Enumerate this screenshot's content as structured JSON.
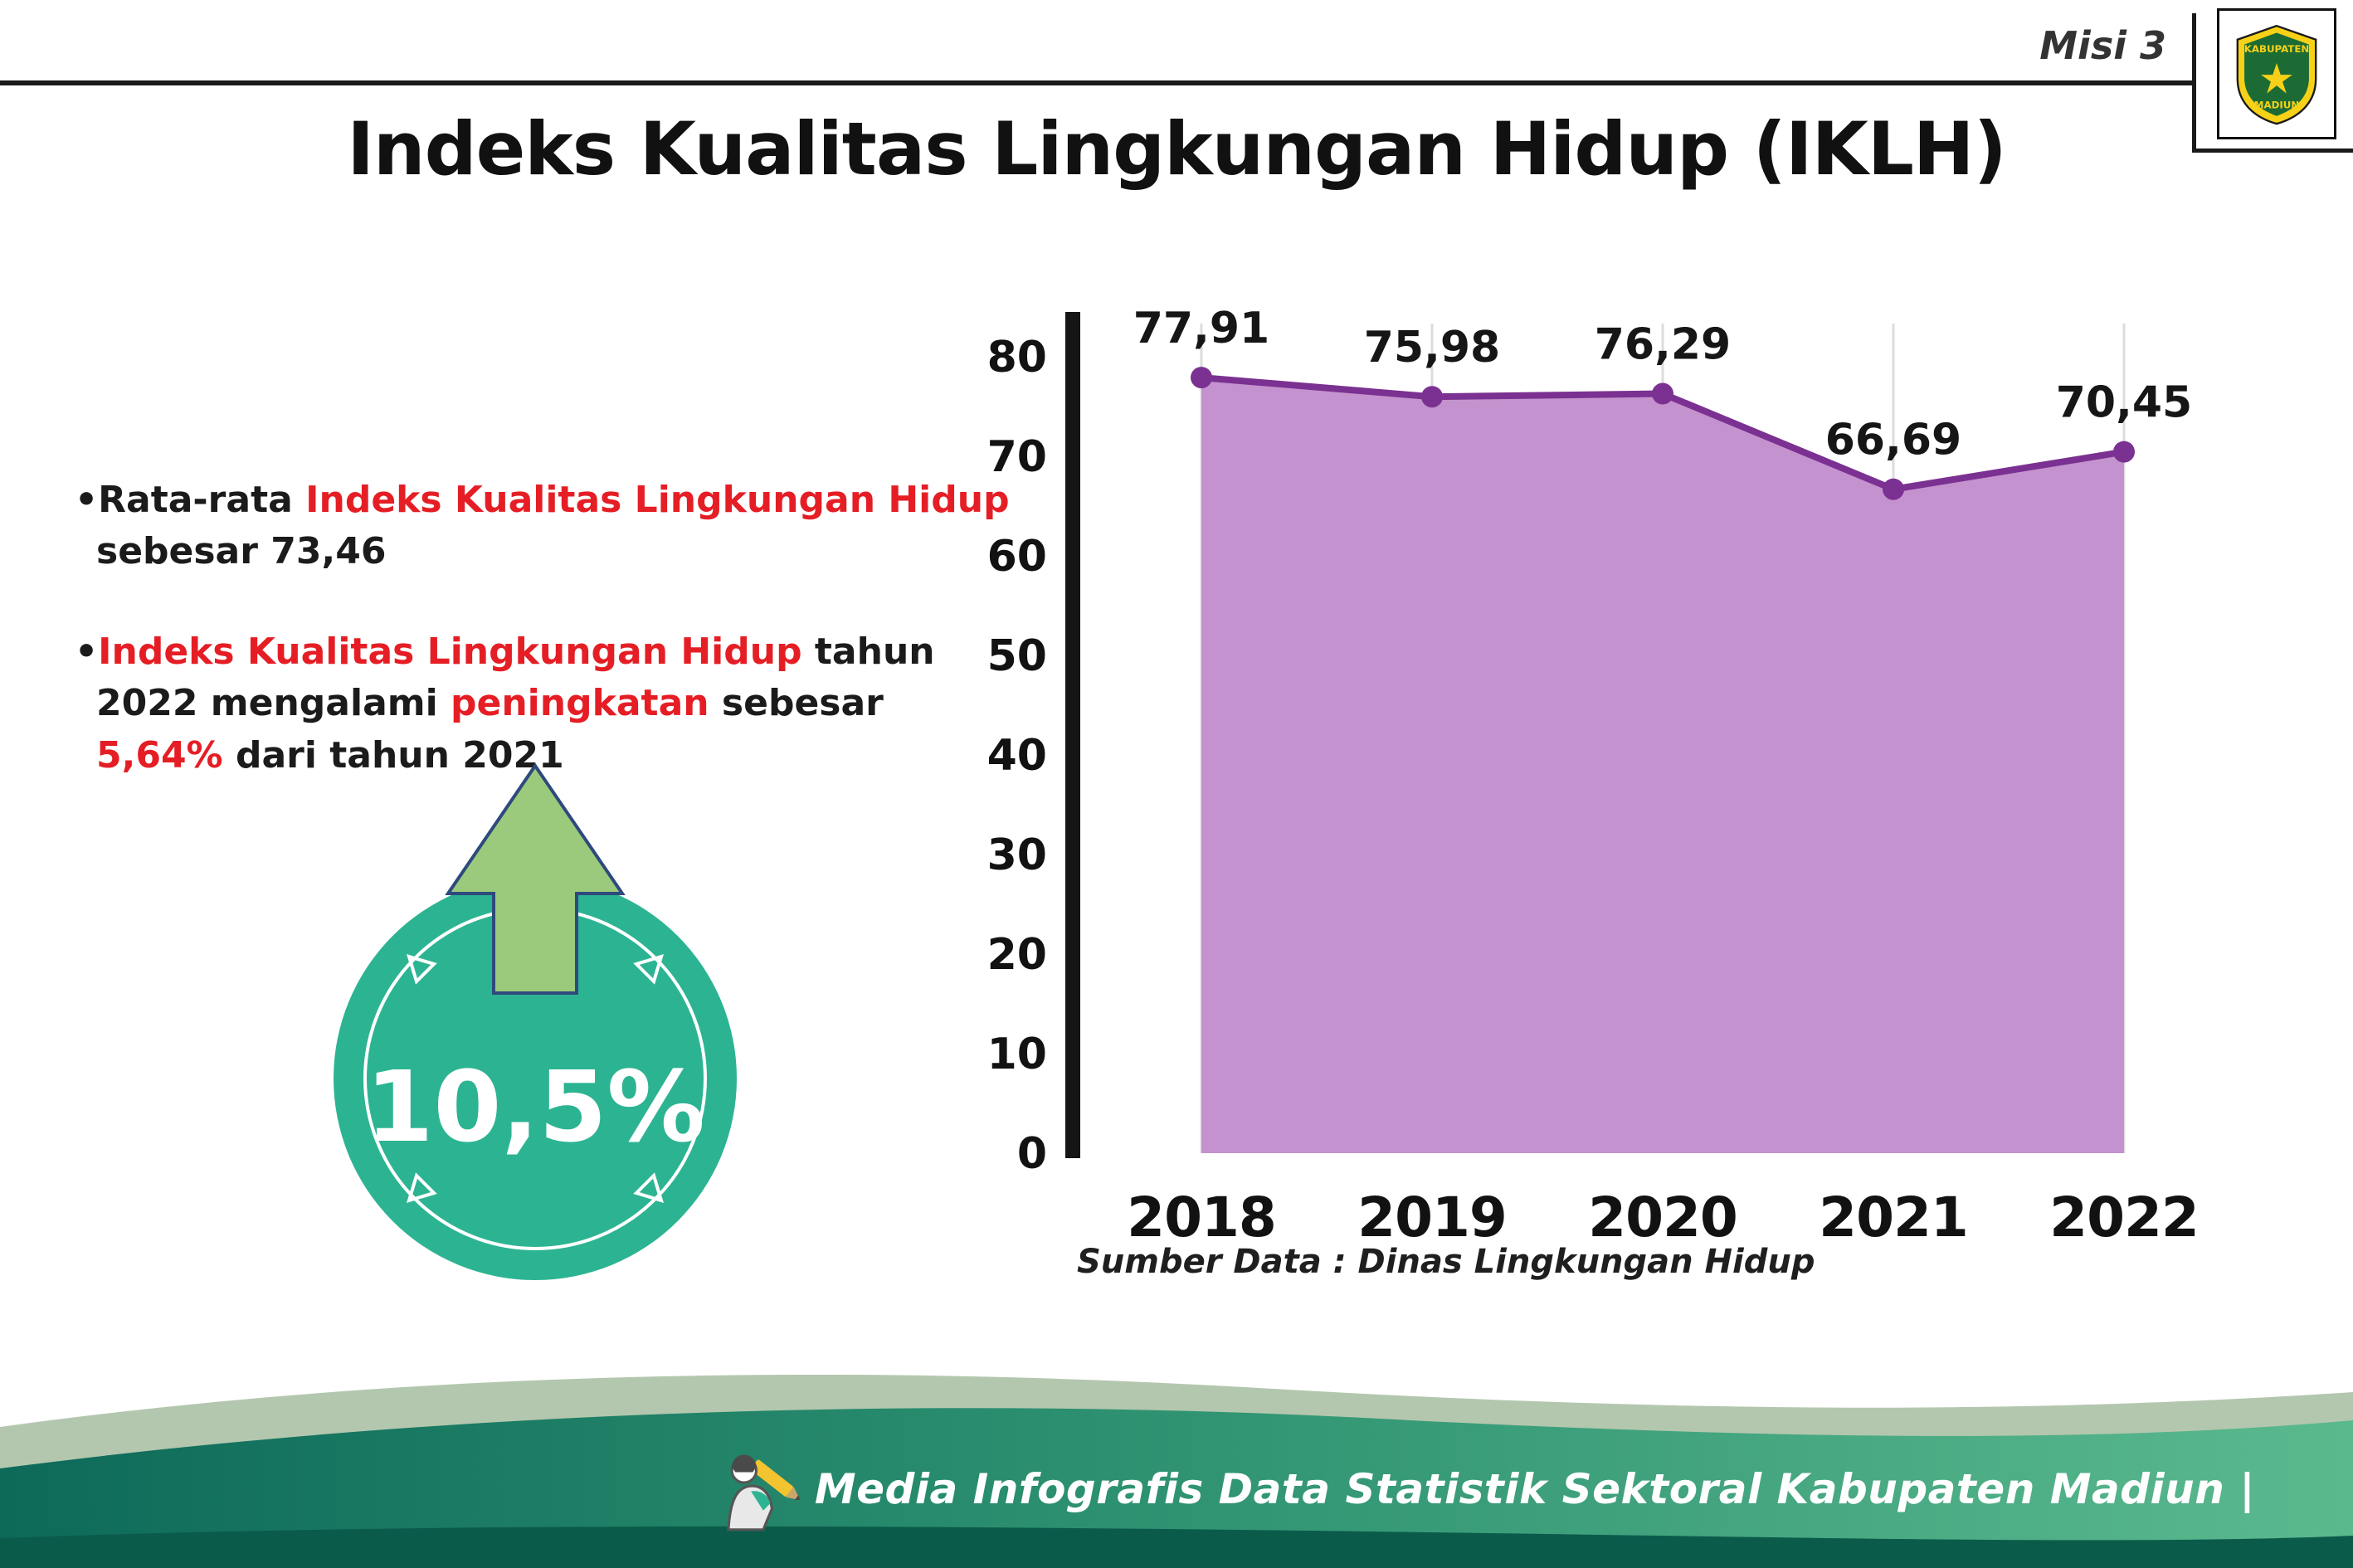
{
  "header": {
    "misi_label": "Misi 3",
    "title": "Indeks Kualitas Lingkungan Hidup (IKLH)",
    "logo": {
      "text_top": "KABUPATEN",
      "text_bottom": "MADIUN"
    }
  },
  "bullets": {
    "glyph": "•",
    "item1": {
      "t1": "Rata-rata ",
      "h1": "Indeks Kualitas Lingkungan Hidup",
      "t2": "sebesar 73,46"
    },
    "item2": {
      "h1": "Indeks Kualitas Lingkungan Hidup",
      "t1": " tahun 2022 mengalami ",
      "h2": "peningkatan",
      "t2": " sebesar ",
      "h3": "5,64%",
      "t3": " dari tahun 2021"
    }
  },
  "badge": {
    "value": "10,5%"
  },
  "chart_data": {
    "type": "area",
    "title": "",
    "categories": [
      "2018",
      "2019",
      "2020",
      "2021",
      "2022"
    ],
    "values": [
      77.91,
      75.98,
      76.29,
      66.69,
      70.45
    ],
    "value_labels": [
      "77,91",
      "75,98",
      "76,29",
      "66,69",
      "70,45"
    ],
    "yticks": [
      0,
      10,
      20,
      30,
      40,
      50,
      60,
      70,
      80
    ],
    "ylim": [
      0,
      84
    ],
    "xlabel": "",
    "ylabel": "",
    "legend": "none",
    "grid": "vertical-light",
    "colors": {
      "area": "#c492ce",
      "line": "#7b3191",
      "grid": "#dcdcdc",
      "axis": "#151515"
    }
  },
  "source_note": "Sumber Data : Dinas Lingkungan Hidup",
  "footer": {
    "text": "Media Infografis Data Statistik Sektoral Kabupaten Madiun |"
  },
  "colors": {
    "accent_red": "#e51e25",
    "badge_teal": "#2cb492",
    "arrow_green": "#9cca7d",
    "footer_sage": "#b3c7ae",
    "footer_teal_dark": "#0d6a59",
    "footer_teal_light": "#5bb98e",
    "footer_bottom_strip": "#0b5b4b"
  }
}
